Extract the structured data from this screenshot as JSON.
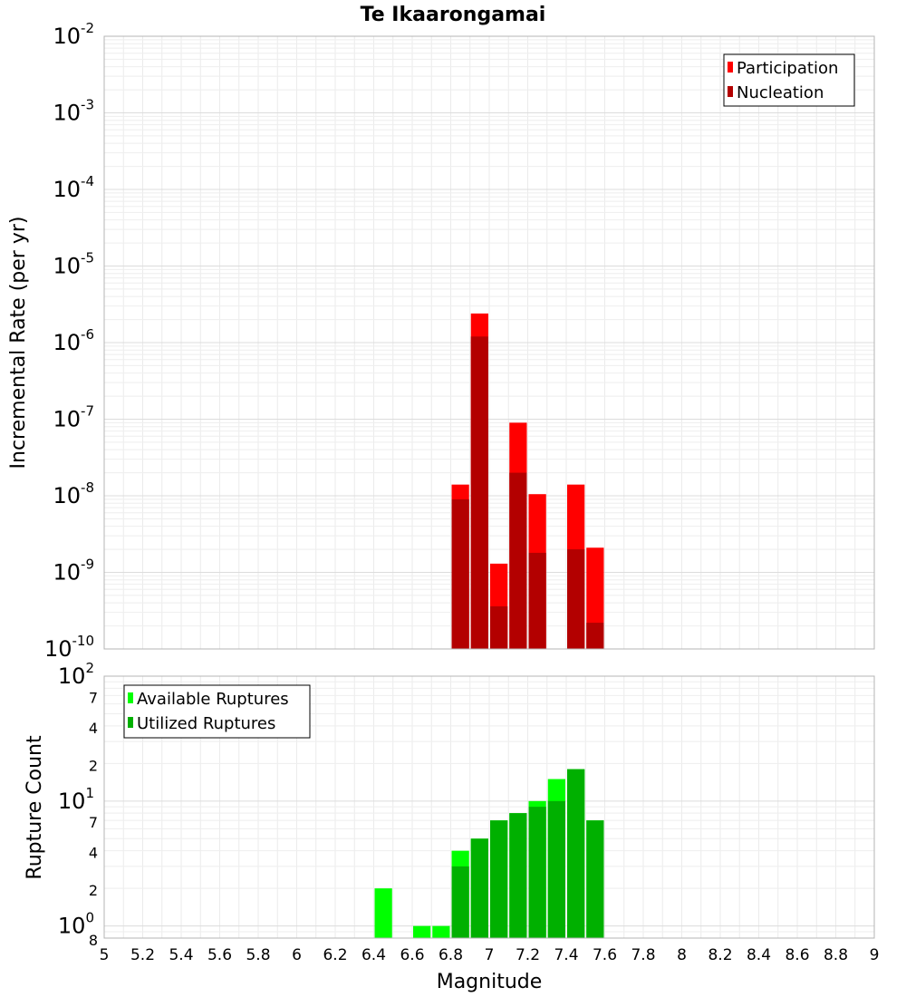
{
  "chart_data": [
    {
      "type": "bar",
      "title": "Te Ikaarongamai",
      "ylabel": "Incremental Rate (per yr)",
      "yscale": "log",
      "ylim": [
        1e-10,
        0.01
      ],
      "y_ticks": [
        {
          "base": "10",
          "exp": "-2"
        },
        {
          "base": "10",
          "exp": "-3"
        },
        {
          "base": "10",
          "exp": "-4"
        },
        {
          "base": "10",
          "exp": "-5"
        },
        {
          "base": "10",
          "exp": "-6"
        },
        {
          "base": "10",
          "exp": "-7"
        },
        {
          "base": "10",
          "exp": "-8"
        },
        {
          "base": "10",
          "exp": "-9"
        },
        {
          "base": "10",
          "exp": "-10"
        }
      ],
      "legend_position": "top-right",
      "grid": true,
      "x": [
        6.85,
        6.95,
        7.05,
        7.15,
        7.25,
        7.45,
        7.55
      ],
      "series": [
        {
          "name": "Participation",
          "color": "#ff0000",
          "values": [
            1.4e-08,
            2.4e-06,
            1.3e-09,
            9e-08,
            1.05e-08,
            1.4e-08,
            2.1e-09
          ]
        },
        {
          "name": "Nucleation",
          "color": "#b30000",
          "values": [
            9e-09,
            1.2e-06,
            3.6e-10,
            2e-08,
            1.8e-09,
            2e-09,
            2.2e-10
          ]
        }
      ]
    },
    {
      "type": "bar",
      "ylabel": "Rupture Count",
      "yscale": "log",
      "ylim": [
        0.8,
        100
      ],
      "y_ticks": [
        {
          "base": "10",
          "exp": "2"
        },
        {
          "base": "7",
          "exp": ""
        },
        {
          "base": "4",
          "exp": ""
        },
        {
          "base": "2",
          "exp": ""
        },
        {
          "base": "10",
          "exp": "1"
        },
        {
          "base": "7",
          "exp": ""
        },
        {
          "base": "4",
          "exp": ""
        },
        {
          "base": "2",
          "exp": ""
        },
        {
          "base": "10",
          "exp": "0"
        },
        {
          "base": "8",
          "exp": ""
        }
      ],
      "legend_position": "top-left",
      "grid": true,
      "x": [
        6.45,
        6.65,
        6.75,
        6.85,
        6.95,
        7.05,
        7.15,
        7.25,
        7.35,
        7.45,
        7.55
      ],
      "series": [
        {
          "name": "Available Ruptures",
          "color": "#00ff00",
          "values": [
            2,
            1,
            1,
            4,
            5,
            7,
            8,
            10,
            15,
            18,
            7
          ]
        },
        {
          "name": "Utilized Ruptures",
          "color": "#00b000",
          "values": [
            0,
            0,
            0,
            3,
            5,
            7,
            8,
            9,
            10,
            18,
            7
          ]
        }
      ]
    }
  ],
  "x_axis": {
    "label": "Magnitude",
    "xlim": [
      5,
      9
    ],
    "tick_labels": [
      "5",
      "5.2",
      "5.4",
      "5.6",
      "5.8",
      "6",
      "6.2",
      "6.4",
      "6.6",
      "6.8",
      "7",
      "7.2",
      "7.4",
      "7.6",
      "7.8",
      "8",
      "8.2",
      "8.4",
      "8.6",
      "8.8",
      "9"
    ]
  }
}
